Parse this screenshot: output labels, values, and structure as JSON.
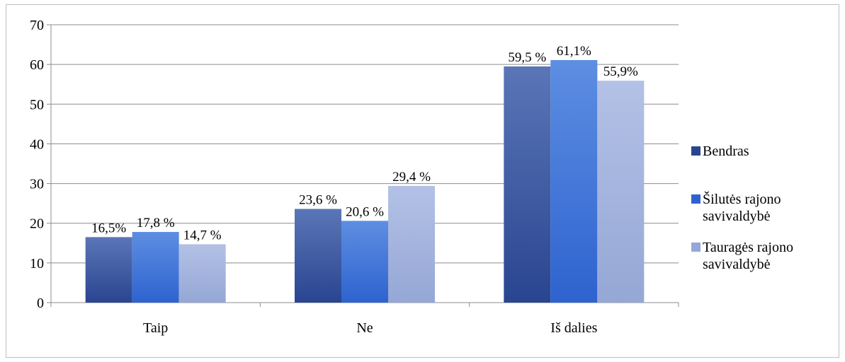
{
  "chart_data": {
    "type": "bar",
    "categories": [
      "Taip",
      "Ne",
      "Iš dalies"
    ],
    "series": [
      {
        "name": "Bendras",
        "values": [
          16.5,
          23.6,
          59.5
        ],
        "labels": [
          "16,5%",
          "23,6 %",
          "59,5 %"
        ],
        "color_top": "#5a76b7",
        "color_bottom": "#2a4590"
      },
      {
        "name": "Šilutės rajono savivaldybė",
        "values": [
          17.8,
          20.6,
          61.1
        ],
        "labels": [
          "17,8 %",
          "20,6 %",
          "61,1%"
        ],
        "color_top": "#5d8ee2",
        "color_bottom": "#2e63cf"
      },
      {
        "name": "Tauragės rajono savivaldybė",
        "values": [
          14.7,
          29.4,
          55.9
        ],
        "labels": [
          "14,7 %",
          "29,4 %",
          "55,9%"
        ],
        "color_top": "#b3c1e6",
        "color_bottom": "#95a7d5"
      }
    ],
    "legend": [
      {
        "lines": [
          "Bendras"
        ]
      },
      {
        "lines": [
          "Šilutės rajono",
          "savivaldybė"
        ]
      },
      {
        "lines": [
          "Tauragės rajono",
          "savivaldybė"
        ]
      }
    ],
    "yticks": [
      "0",
      "10",
      "20",
      "30",
      "40",
      "50",
      "60",
      "70"
    ],
    "ylim": [
      0,
      70
    ],
    "grid": true,
    "legend_position": "right"
  }
}
